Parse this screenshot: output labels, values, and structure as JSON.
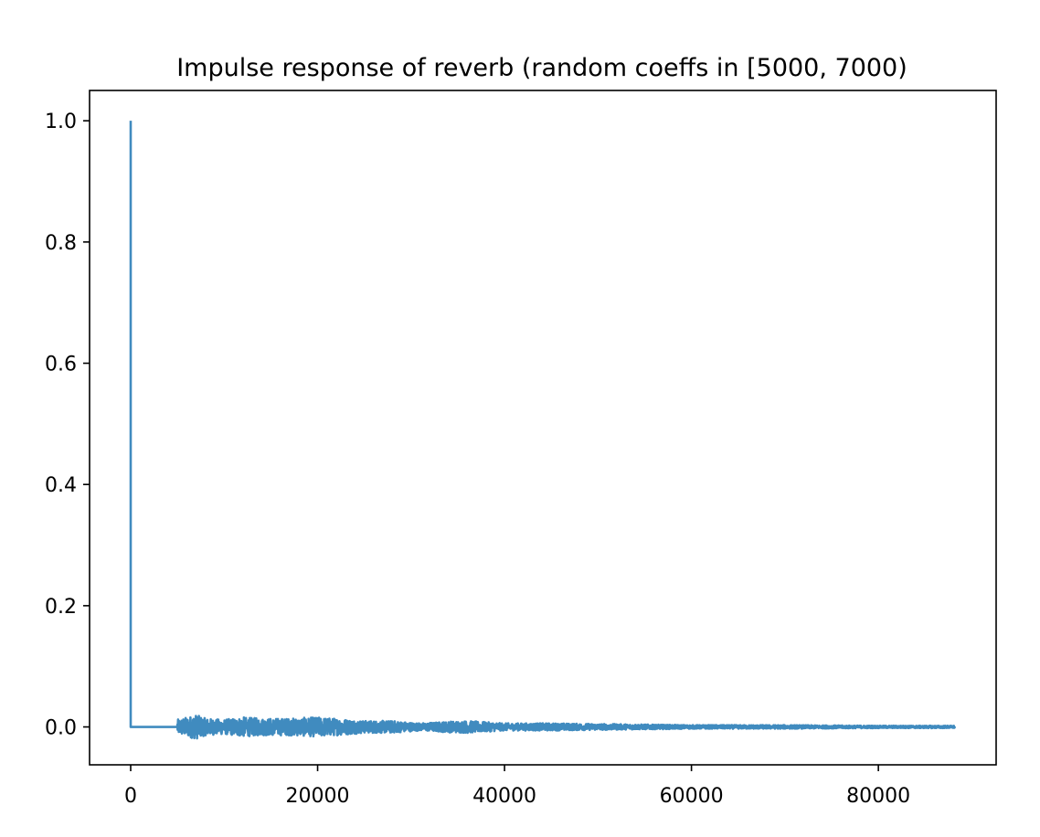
{
  "chart_data": {
    "type": "line",
    "title": "Impulse response of reverb (random coeffs in [5000, 7000)",
    "xlabel": "",
    "ylabel": "",
    "xlim": [
      -4400,
      92600
    ],
    "ylim": [
      -0.0625,
      1.05
    ],
    "grid": false,
    "legend": "none",
    "x_ticks": [
      0,
      20000,
      40000,
      60000,
      80000
    ],
    "x_tick_labels": [
      "0",
      "20000",
      "40000",
      "60000",
      "80000"
    ],
    "y_ticks": [
      0.0,
      0.2,
      0.4,
      0.6,
      0.8,
      1.0
    ],
    "y_tick_labels": [
      "0.0",
      "0.2",
      "0.4",
      "0.6",
      "0.8",
      "1.0"
    ],
    "series": [
      {
        "color": "#1f77b4",
        "impulse": {
          "x": 0,
          "y": 1.0
        },
        "flat_zero_until": 5000,
        "envelope": [
          {
            "x": 5000,
            "amp": 0.012
          },
          {
            "x": 7000,
            "amp": 0.02
          },
          {
            "x": 8000,
            "amp": 0.014
          },
          {
            "x": 10000,
            "amp": 0.012
          },
          {
            "x": 12000,
            "amp": 0.016
          },
          {
            "x": 14000,
            "amp": 0.014
          },
          {
            "x": 17000,
            "amp": 0.014
          },
          {
            "x": 20000,
            "amp": 0.016
          },
          {
            "x": 22000,
            "amp": 0.014
          },
          {
            "x": 25000,
            "amp": 0.01
          },
          {
            "x": 28000,
            "amp": 0.01
          },
          {
            "x": 31000,
            "amp": 0.006
          },
          {
            "x": 34000,
            "amp": 0.009
          },
          {
            "x": 36000,
            "amp": 0.01
          },
          {
            "x": 40000,
            "amp": 0.006
          },
          {
            "x": 45000,
            "amp": 0.006
          },
          {
            "x": 50000,
            "amp": 0.005
          },
          {
            "x": 55000,
            "amp": 0.004
          },
          {
            "x": 60000,
            "amp": 0.003
          },
          {
            "x": 70000,
            "amp": 0.003
          },
          {
            "x": 80000,
            "amp": 0.002
          },
          {
            "x": 88200,
            "amp": 0.002
          }
        ]
      }
    ]
  }
}
